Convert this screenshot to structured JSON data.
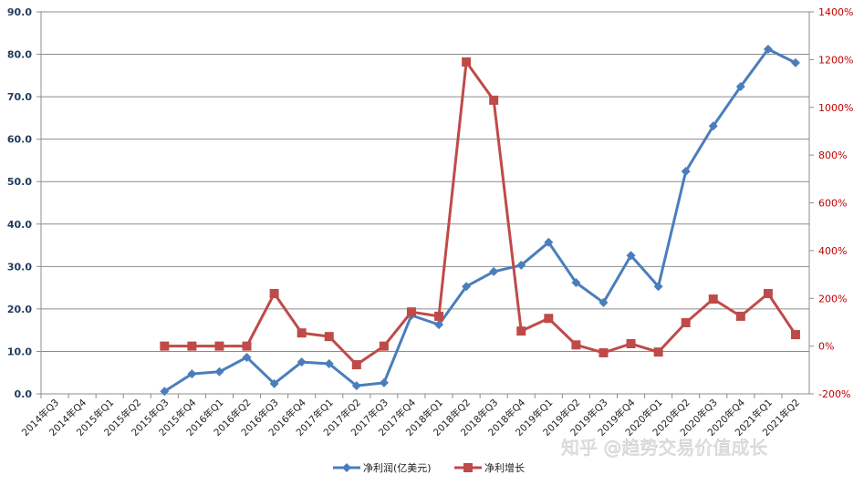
{
  "chart_data": {
    "type": "line",
    "categories": [
      "2014年Q3",
      "2014年Q4",
      "2015年Q1",
      "2015年Q2",
      "2015年Q3",
      "2015年Q4",
      "2016年Q1",
      "2016年Q2",
      "2016年Q3",
      "2016年Q4",
      "2017年Q1",
      "2017年Q2",
      "2017年Q3",
      "2017年Q4",
      "2018年Q1",
      "2018年Q2",
      "2018年Q3",
      "2018年Q4",
      "2019年Q1",
      "2019年Q2",
      "2019年Q3",
      "2019年Q4",
      "2020年Q1",
      "2020年Q2",
      "2020年Q3",
      "2020年Q4",
      "2021年Q1",
      "2021年Q2"
    ],
    "series": [
      {
        "name": "净利润(亿美元)",
        "axis": "left",
        "color": "#4a7ebb",
        "marker": "diamond",
        "values": [
          null,
          null,
          null,
          null,
          0.6,
          4.7,
          5.2,
          8.6,
          2.4,
          7.5,
          7.1,
          1.9,
          2.6,
          18.5,
          16.3,
          25.3,
          28.8,
          30.3,
          35.7,
          26.2,
          21.5,
          32.6,
          25.3,
          52.4,
          63.1,
          72.4,
          81.2,
          78.0
        ]
      },
      {
        "name": "净利增长",
        "axis": "right",
        "color": "#be4b48",
        "marker": "square",
        "values": [
          null,
          null,
          null,
          null,
          0,
          0,
          0,
          0,
          220,
          55,
          40,
          -78,
          0,
          143,
          125,
          1190,
          1030,
          63,
          116,
          5,
          -28,
          10,
          -25,
          98,
          197,
          125,
          220,
          48
        ]
      }
    ],
    "left_axis": {
      "range": [
        0,
        90
      ],
      "ticks": [
        "0.0",
        "10.0",
        "20.0",
        "30.0",
        "40.0",
        "50.0",
        "60.0",
        "70.0",
        "80.0",
        "90.0"
      ]
    },
    "right_axis": {
      "range": [
        -200,
        1400
      ],
      "ticks": [
        "-200%",
        "0%",
        "200%",
        "400%",
        "600%",
        "800%",
        "1000%",
        "1200%",
        "1400%"
      ]
    },
    "grid": true,
    "legend": "bottom",
    "title": "",
    "xlabel": "",
    "ylabel": ""
  },
  "watermark": "知乎 @趋势交易价值成长"
}
